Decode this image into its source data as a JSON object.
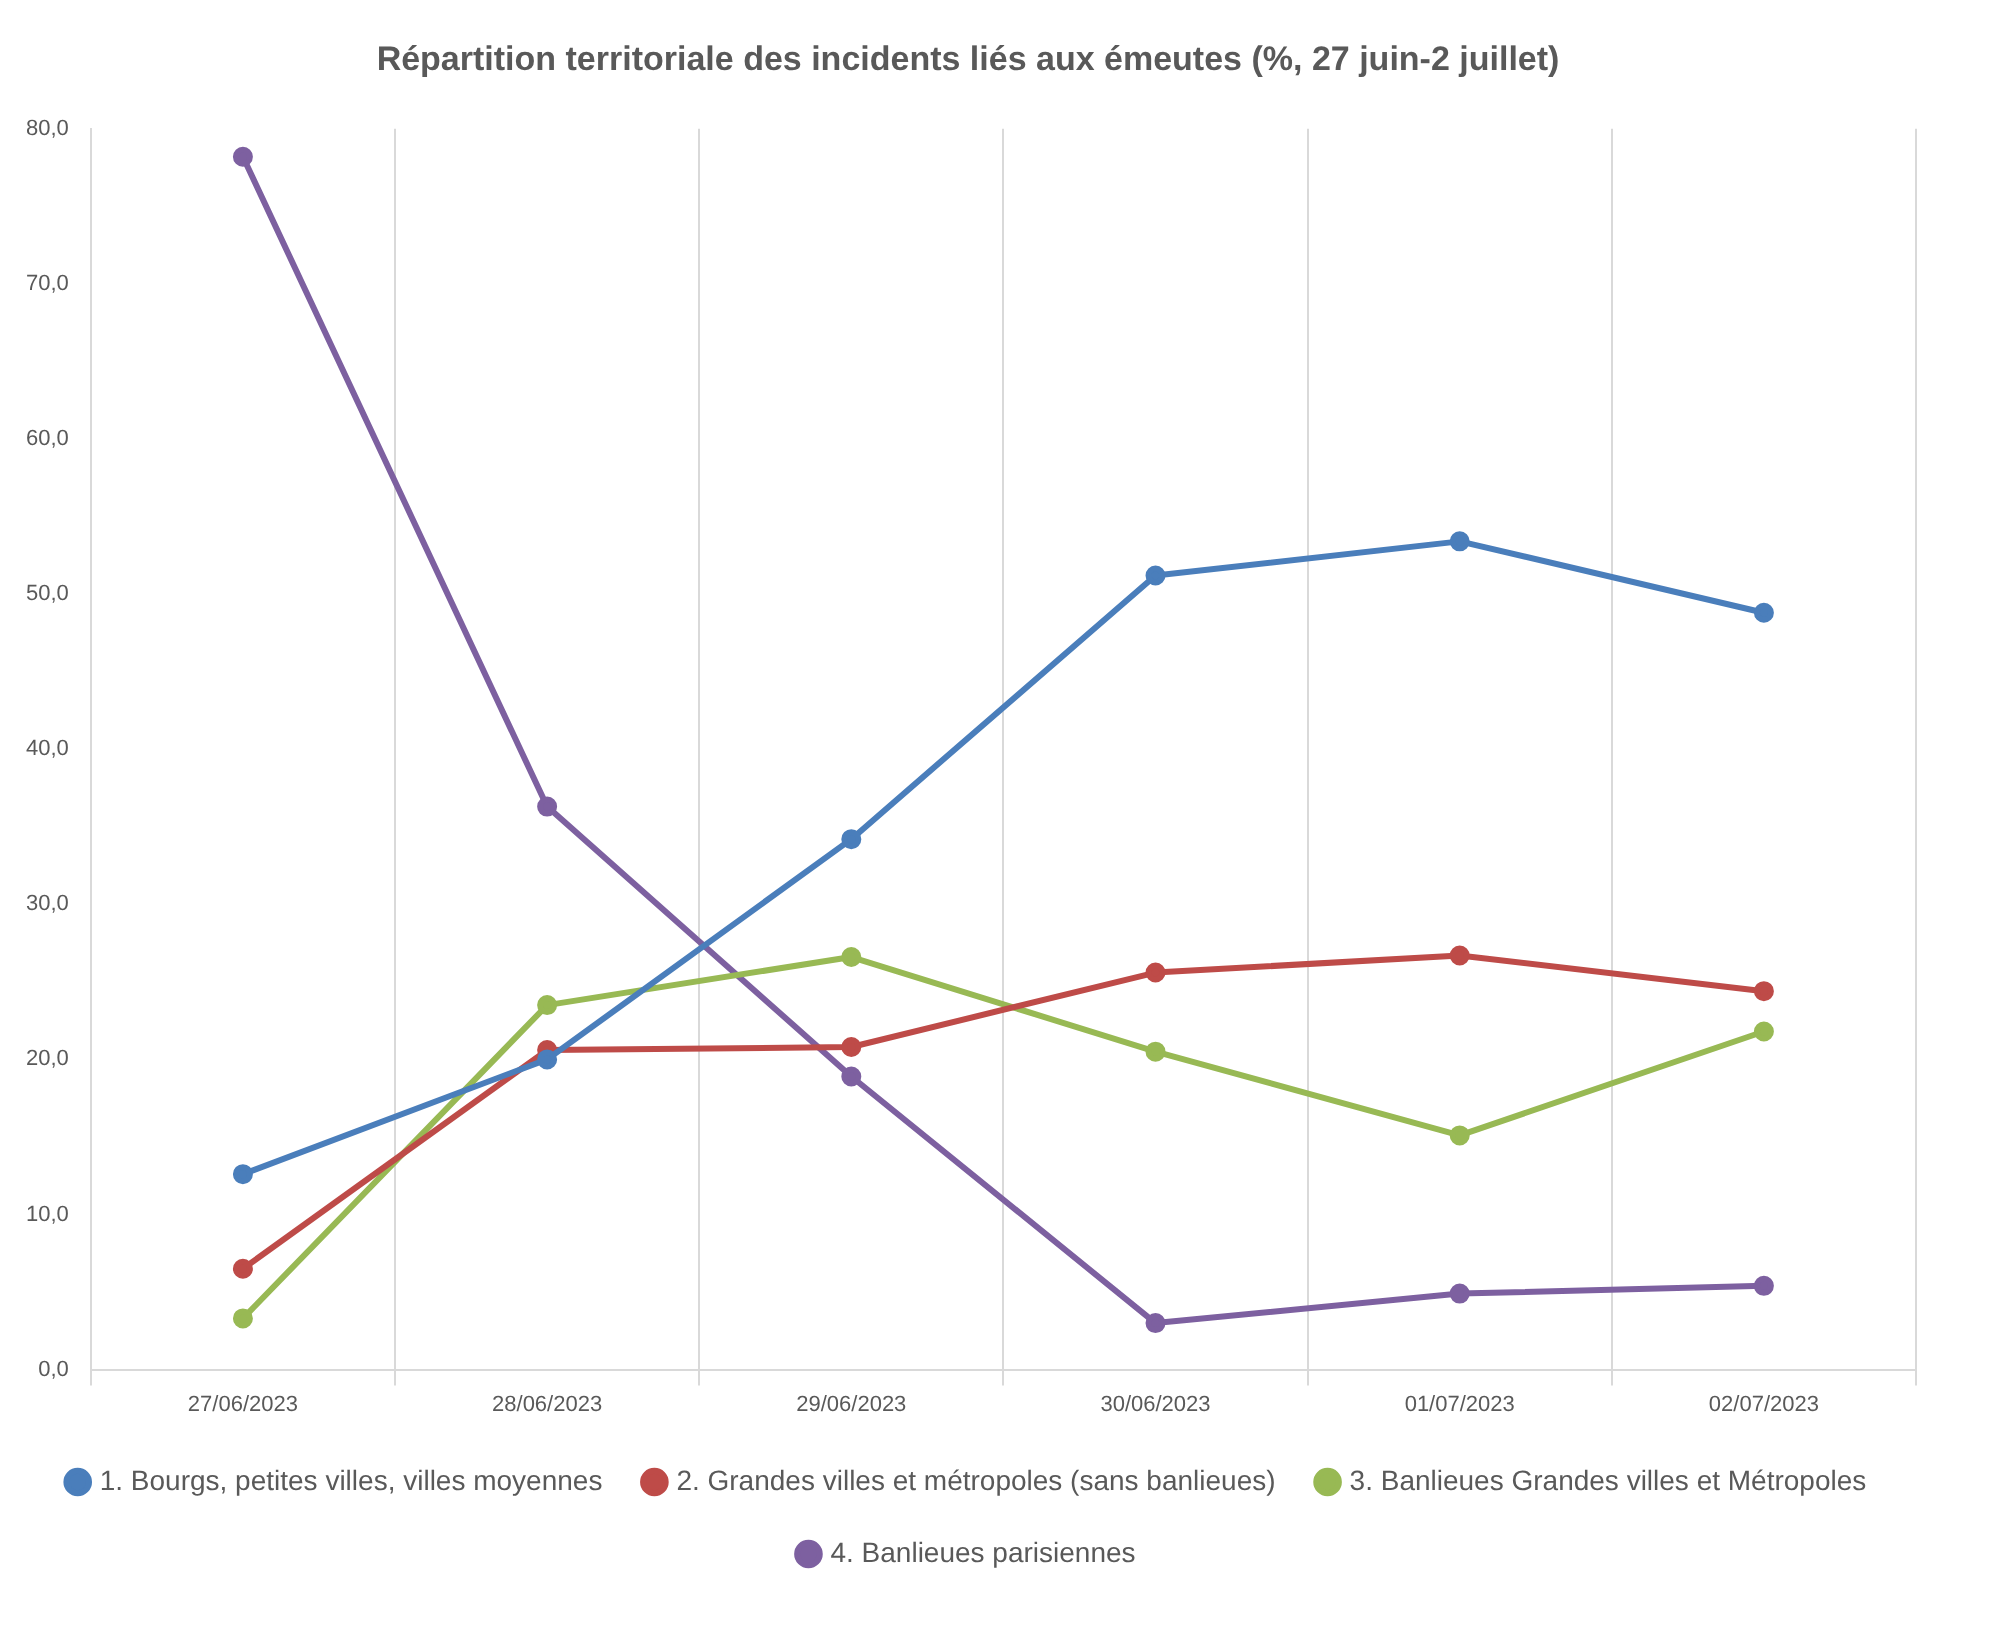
{
  "chart_data": {
    "type": "line",
    "title": "Répartition territoriale des incidents liés aux émeutes (%, 27 juin-2 juillet)",
    "categories": [
      "27/06/2023",
      "28/06/2023",
      "29/06/2023",
      "30/06/2023",
      "01/07/2023",
      "02/07/2023"
    ],
    "series": [
      {
        "name": "1. Bourgs, petites villes, villes moyennes",
        "color": "#4a7ebb",
        "values": [
          12.6,
          20.0,
          34.2,
          51.2,
          53.4,
          48.8
        ]
      },
      {
        "name": "2. Grandes villes et métropoles (sans banlieues)",
        "color": "#be4b48",
        "values": [
          6.5,
          20.6,
          20.8,
          25.6,
          26.7,
          24.4
        ]
      },
      {
        "name": "3. Banlieues Grandes villes et Métropoles",
        "color": "#98b954",
        "values": [
          3.3,
          23.5,
          26.6,
          20.5,
          15.1,
          21.8
        ]
      },
      {
        "name": "4. Banlieues parisiennes",
        "color": "#7d60a0",
        "values": [
          78.2,
          36.3,
          18.9,
          3.0,
          4.9,
          5.4
        ]
      }
    ],
    "ylim": [
      0,
      80
    ],
    "yticks": [
      {
        "value": 0,
        "label": "0,0"
      },
      {
        "value": 10,
        "label": "10,0"
      },
      {
        "value": 20,
        "label": "20,0"
      },
      {
        "value": 30,
        "label": "30,0"
      },
      {
        "value": 40,
        "label": "40,0"
      },
      {
        "value": 50,
        "label": "50,0"
      },
      {
        "value": 60,
        "label": "60,0"
      },
      {
        "value": 70,
        "label": "70,0"
      },
      {
        "value": 80,
        "label": "80,0"
      }
    ],
    "grid": "x",
    "legend": "bottom",
    "marker": "circle",
    "line_style": "solid"
  }
}
